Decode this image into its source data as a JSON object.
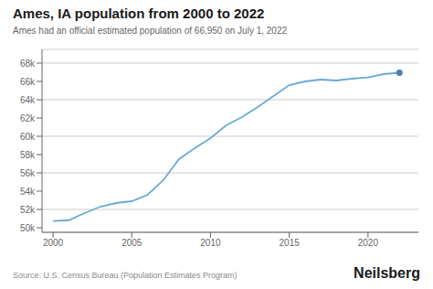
{
  "chart_data": {
    "type": "line",
    "title": "Ames, IA population from 2000 to 2022",
    "subtitle": "Ames had an official estimated population of 66,950 on July 1, 2022",
    "annotations": [
      "Source: U.S. Census Bureau (Population Estimates Program)",
      "Neilsberg"
    ],
    "x": [
      2000,
      2001,
      2002,
      2003,
      2004,
      2005,
      2006,
      2007,
      2008,
      2009,
      2010,
      2011,
      2012,
      2013,
      2014,
      2015,
      2016,
      2017,
      2018,
      2019,
      2020,
      2021,
      2022
    ],
    "series": [
      {
        "type": "line",
        "color": "#6aaad4",
        "values": [
          50731,
          50825,
          51600,
          52300,
          52700,
          52900,
          53600,
          55200,
          57500,
          58700,
          59809,
          61200,
          62100,
          63200,
          64400,
          65600,
          66000,
          66200,
          66100,
          66300,
          66427,
          66800,
          66950
        ]
      },
      {
        "type": "scatter",
        "color": "#4a7fb5",
        "values": [
          null,
          null,
          null,
          null,
          null,
          null,
          null,
          null,
          null,
          null,
          null,
          null,
          null,
          null,
          null,
          null,
          null,
          null,
          null,
          null,
          null,
          null,
          66950
        ]
      }
    ],
    "xlim": [
      1999.3,
      2023.2
    ],
    "xticks": [
      2000,
      2005,
      2010,
      2015,
      2020
    ],
    "ylim": [
      49500,
      69500
    ],
    "yticks": [
      {
        "value": 50000,
        "label": "50k"
      },
      {
        "value": 52000,
        "label": "52k"
      },
      {
        "value": 54000,
        "label": "54k"
      },
      {
        "value": 56000,
        "label": "56k"
      },
      {
        "value": 58000,
        "label": "58k"
      },
      {
        "value": 60000,
        "label": "60k"
      },
      {
        "value": 62000,
        "label": "62k"
      },
      {
        "value": 64000,
        "label": "64k"
      },
      {
        "value": 66000,
        "label": "66k"
      },
      {
        "value": 68000,
        "label": "68k"
      }
    ],
    "grid": true
  }
}
